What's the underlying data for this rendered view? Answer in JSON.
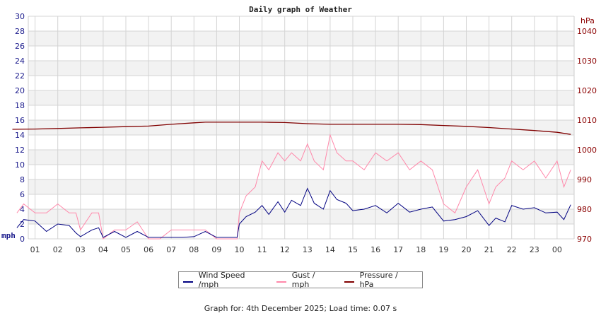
{
  "chart_data": {
    "type": "line",
    "title": "Daily graph of Weather",
    "xlabel": "",
    "ylabel_left": "mph",
    "ylabel_right": "hPa",
    "ylim_left": [
      0,
      30
    ],
    "ylim_right": [
      970,
      1045
    ],
    "yticks_left": [
      "0",
      "2",
      "4",
      "6",
      "8",
      "10",
      "12",
      "14",
      "16",
      "18",
      "20",
      "22",
      "24",
      "26",
      "28",
      "30"
    ],
    "yticks_right": [
      "970",
      "980",
      "990",
      "1000",
      "1010",
      "1020",
      "1030",
      "1040"
    ],
    "x_ticks": [
      "01",
      "02",
      "03",
      "04",
      "05",
      "06",
      "07",
      "08",
      "09",
      "10",
      "11",
      "12",
      "13",
      "14",
      "15",
      "16",
      "17",
      "18",
      "19",
      "20",
      "21",
      "22",
      "23",
      "00"
    ],
    "grid": true,
    "legend_position": "bottom",
    "series": [
      {
        "name": "Wind Speed /mph",
        "color": "#000080",
        "axis": "left",
        "x_hours": [
          0.2,
          0.5,
          1,
          1.5,
          2,
          2.5,
          2.8,
          3,
          3.5,
          3.8,
          4,
          4.5,
          5,
          5.5,
          6,
          6.5,
          7,
          7.5,
          8,
          8.5,
          9,
          9.9,
          10,
          10.3,
          10.7,
          11,
          11.3,
          11.7,
          12,
          12.3,
          12.7,
          13,
          13.3,
          13.7,
          14,
          14.3,
          14.7,
          15,
          15.5,
          16,
          16.5,
          17,
          17.5,
          18,
          18.5,
          19,
          19.5,
          20,
          20.5,
          21,
          21.3,
          21.7,
          22,
          22.5,
          23,
          23.5,
          24,
          24.3,
          24.6
        ],
        "values": [
          1.5,
          2.6,
          2.4,
          1.0,
          2.0,
          1.8,
          0.8,
          0.3,
          1.2,
          1.5,
          0.2,
          1.0,
          0.2,
          1.0,
          0.2,
          0.2,
          0.2,
          0.2,
          0.3,
          1.0,
          0.2,
          0.2,
          2.0,
          3.0,
          3.6,
          4.5,
          3.3,
          5.0,
          3.6,
          5.2,
          4.5,
          6.8,
          4.8,
          4.0,
          6.5,
          5.3,
          4.8,
          3.8,
          4.0,
          4.5,
          3.5,
          4.8,
          3.6,
          4.0,
          4.3,
          2.4,
          2.6,
          3.0,
          3.8,
          1.8,
          2.8,
          2.3,
          4.5,
          4.0,
          4.2,
          3.5,
          3.6,
          2.6,
          4.6
        ]
      },
      {
        "name": "Gust / mph",
        "color": "#ff88aa",
        "axis": "left",
        "x_hours": [
          0.2,
          0.5,
          1,
          1.5,
          2,
          2.5,
          2.8,
          3,
          3.5,
          3.8,
          4,
          4.5,
          5,
          5.5,
          6,
          6.5,
          7,
          7.5,
          8,
          8.5,
          9,
          9.9,
          10,
          10.3,
          10.7,
          11,
          11.3,
          11.7,
          12,
          12.3,
          12.7,
          13,
          13.3,
          13.7,
          14,
          14.3,
          14.7,
          15,
          15.5,
          16,
          16.5,
          17,
          17.5,
          18,
          18.5,
          19,
          19.5,
          20,
          20.5,
          21,
          21.3,
          21.7,
          22,
          22.5,
          23,
          23.5,
          24,
          24.3,
          24.6
        ],
        "values": [
          3.5,
          4.7,
          3.5,
          3.5,
          4.7,
          3.5,
          3.5,
          1.2,
          3.5,
          3.5,
          0,
          1.2,
          1.2,
          2.3,
          0,
          0,
          1.2,
          1.2,
          1.2,
          1.2,
          0,
          0,
          3.5,
          5.8,
          7.0,
          10.5,
          9.3,
          11.6,
          10.5,
          11.6,
          10.5,
          12.8,
          10.5,
          9.3,
          14.0,
          11.6,
          10.5,
          10.5,
          9.3,
          11.6,
          10.5,
          11.6,
          9.3,
          10.5,
          9.3,
          4.7,
          3.5,
          7.0,
          9.3,
          4.7,
          7.0,
          8.2,
          10.5,
          9.3,
          10.5,
          8.2,
          10.5,
          7.0,
          9.3
        ]
      },
      {
        "name": "Pressure / hPa",
        "color": "#800000",
        "axis": "right",
        "x_hours": [
          0,
          1,
          2,
          3,
          4,
          5,
          6,
          7,
          8,
          8.5,
          9,
          10,
          11,
          12,
          13,
          14,
          15,
          16,
          17,
          18,
          19,
          20,
          21,
          22,
          23,
          24,
          24.6
        ],
        "values": [
          1006.9,
          1007.0,
          1007.2,
          1007.4,
          1007.6,
          1007.8,
          1008.0,
          1008.6,
          1009.1,
          1009.3,
          1009.3,
          1009.3,
          1009.3,
          1009.2,
          1008.8,
          1008.6,
          1008.6,
          1008.6,
          1008.6,
          1008.5,
          1008.2,
          1007.9,
          1007.5,
          1007.0,
          1006.5,
          1005.9,
          1005.2
        ]
      }
    ]
  },
  "legend": {
    "items": [
      {
        "label": "Wind Speed /mph",
        "color": "#000080"
      },
      {
        "label": "Gust / mph",
        "color": "#ff88aa"
      },
      {
        "label": "Pressure / hPa",
        "color": "#800000"
      }
    ]
  },
  "footer": {
    "text": "Graph for: 4th December 2025; Load time: 0.07 s"
  },
  "colors": {
    "wind": "#000080",
    "gust": "#ff88aa",
    "pressure": "#800000",
    "left_axis": "#1a1a8c",
    "right_axis": "#8b0000",
    "grid": "#d4d4d4",
    "band": "#f2f2f2"
  }
}
